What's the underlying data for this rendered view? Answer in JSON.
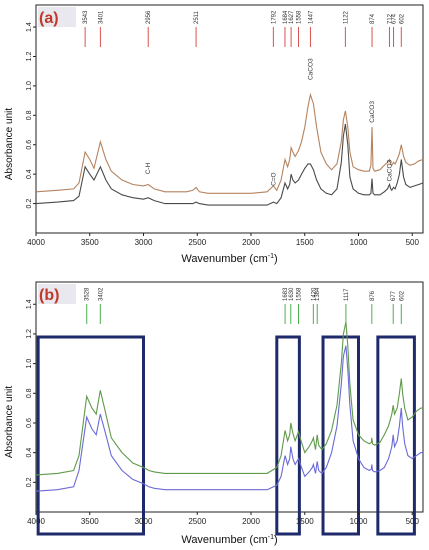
{
  "chart_data": [
    {
      "type": "line",
      "panel_label": "(a)",
      "xlabel": "Wavenumber (cm",
      "xlabel_sup": "-1",
      "xlabel_close": ")",
      "ylabel": "Absorbance unit",
      "xlim": [
        4000,
        400
      ],
      "ylim": [
        0.0,
        1.55
      ],
      "x_ticks": [
        4000,
        3500,
        3000,
        2500,
        2000,
        1500,
        1000,
        500
      ],
      "y_ticks": [
        0.2,
        0.4,
        0.6,
        0.8,
        1.0,
        1.2,
        1.4
      ],
      "peak_markers": [
        "3543",
        "3401",
        "2956",
        "2511",
        "1792",
        "1684",
        "1627",
        "1558",
        "1447",
        "1122",
        "874",
        "712",
        "674",
        "602"
      ],
      "annotations": [
        {
          "text": "C-H",
          "x": 2956,
          "y": 0.4
        },
        {
          "text": "C=O",
          "x": 1792,
          "y": 0.32
        },
        {
          "text": "CaCO3",
          "x": 1447,
          "y": 1.04
        },
        {
          "text": "CaCO3",
          "x": 874,
          "y": 0.75
        },
        {
          "text": "CaCO3",
          "x": 712,
          "y": 0.35
        }
      ],
      "series": [
        {
          "color": "#b5835f",
          "x": [
            4000,
            3800,
            3650,
            3600,
            3543,
            3500,
            3460,
            3401,
            3350,
            3300,
            3200,
            3100,
            3000,
            2956,
            2900,
            2800,
            2600,
            2540,
            2511,
            2480,
            2400,
            2200,
            2000,
            1850,
            1792,
            1760,
            1720,
            1684,
            1660,
            1640,
            1627,
            1610,
            1590,
            1558,
            1530,
            1500,
            1470,
            1447,
            1420,
            1390,
            1350,
            1300,
            1250,
            1200,
            1160,
            1140,
            1122,
            1100,
            1080,
            1050,
            1000,
            950,
            900,
            885,
            874,
            865,
            850,
            800,
            760,
            730,
            712,
            700,
            690,
            674,
            660,
            640,
            620,
            602,
            580,
            560,
            520,
            480,
            440,
            400
          ],
          "y": [
            0.28,
            0.29,
            0.3,
            0.34,
            0.55,
            0.5,
            0.44,
            0.62,
            0.5,
            0.42,
            0.36,
            0.33,
            0.32,
            0.33,
            0.3,
            0.28,
            0.28,
            0.29,
            0.31,
            0.28,
            0.27,
            0.27,
            0.27,
            0.28,
            0.32,
            0.29,
            0.36,
            0.5,
            0.45,
            0.5,
            0.58,
            0.55,
            0.52,
            0.56,
            0.62,
            0.72,
            0.86,
            0.94,
            0.88,
            0.72,
            0.55,
            0.47,
            0.43,
            0.47,
            0.62,
            0.77,
            0.83,
            0.72,
            0.55,
            0.45,
            0.43,
            0.42,
            0.42,
            0.46,
            0.72,
            0.44,
            0.42,
            0.43,
            0.46,
            0.48,
            0.5,
            0.47,
            0.46,
            0.48,
            0.47,
            0.5,
            0.54,
            0.6,
            0.52,
            0.48,
            0.46,
            0.47,
            0.49,
            0.5
          ]
        },
        {
          "color": "#4a4a4a",
          "x": [
            4000,
            3800,
            3650,
            3600,
            3543,
            3500,
            3460,
            3401,
            3350,
            3300,
            3200,
            3100,
            3000,
            2956,
            2900,
            2800,
            2600,
            2540,
            2511,
            2480,
            2400,
            2200,
            2000,
            1850,
            1792,
            1760,
            1720,
            1684,
            1660,
            1640,
            1627,
            1610,
            1590,
            1558,
            1530,
            1500,
            1470,
            1447,
            1420,
            1390,
            1350,
            1300,
            1250,
            1200,
            1160,
            1140,
            1122,
            1100,
            1080,
            1050,
            1000,
            950,
            900,
            885,
            874,
            865,
            850,
            800,
            760,
            730,
            712,
            700,
            690,
            674,
            660,
            640,
            620,
            602,
            580,
            560,
            520,
            480,
            440,
            400
          ],
          "y": [
            0.2,
            0.21,
            0.22,
            0.25,
            0.45,
            0.4,
            0.36,
            0.45,
            0.36,
            0.3,
            0.26,
            0.24,
            0.23,
            0.24,
            0.22,
            0.2,
            0.2,
            0.2,
            0.21,
            0.2,
            0.19,
            0.19,
            0.19,
            0.19,
            0.21,
            0.2,
            0.24,
            0.34,
            0.3,
            0.33,
            0.4,
            0.36,
            0.34,
            0.36,
            0.4,
            0.44,
            0.47,
            0.47,
            0.43,
            0.36,
            0.3,
            0.27,
            0.26,
            0.3,
            0.48,
            0.66,
            0.74,
            0.6,
            0.38,
            0.3,
            0.27,
            0.26,
            0.26,
            0.27,
            0.37,
            0.27,
            0.26,
            0.26,
            0.28,
            0.3,
            0.33,
            0.3,
            0.29,
            0.31,
            0.3,
            0.34,
            0.4,
            0.5,
            0.38,
            0.33,
            0.31,
            0.32,
            0.33,
            0.34
          ]
        }
      ]
    },
    {
      "type": "line",
      "panel_label": "(b)",
      "xlabel": "Wavenumber (cm",
      "xlabel_sup": "-1",
      "xlabel_close": ")",
      "ylabel": "Absorbance unit",
      "xlim": [
        4000,
        400
      ],
      "ylim": [
        0.0,
        1.55
      ],
      "x_ticks": [
        4000,
        3500,
        3000,
        2500,
        2000,
        1500,
        1000,
        500
      ],
      "y_ticks": [
        0.2,
        0.4,
        0.6,
        0.8,
        1.0,
        1.2,
        1.4
      ],
      "peak_markers": [
        "3528",
        "3402",
        "1683",
        "1630",
        "1558",
        "1420",
        "1384",
        "1117",
        "876",
        "677",
        "602"
      ],
      "highlight_regions": [
        [
          3980,
          3000
        ],
        [
          1760,
          1550
        ],
        [
          1330,
          1000
        ],
        [
          820,
          480
        ]
      ],
      "series": [
        {
          "color": "#5f9a4a",
          "x": [
            4000,
            3800,
            3650,
            3600,
            3528,
            3480,
            3440,
            3402,
            3350,
            3300,
            3200,
            3100,
            3000,
            2950,
            2900,
            2800,
            2600,
            2400,
            2200,
            2000,
            1850,
            1760,
            1720,
            1683,
            1660,
            1640,
            1630,
            1610,
            1590,
            1558,
            1530,
            1500,
            1460,
            1430,
            1420,
            1400,
            1384,
            1370,
            1340,
            1300,
            1250,
            1200,
            1160,
            1140,
            1117,
            1100,
            1080,
            1050,
            1000,
            950,
            900,
            880,
            876,
            870,
            850,
            800,
            760,
            720,
            690,
            677,
            665,
            640,
            620,
            602,
            590,
            570,
            540,
            500,
            460,
            420,
            400
          ],
          "y": [
            0.25,
            0.26,
            0.28,
            0.38,
            0.78,
            0.7,
            0.66,
            0.82,
            0.66,
            0.5,
            0.4,
            0.33,
            0.3,
            0.28,
            0.27,
            0.26,
            0.26,
            0.26,
            0.26,
            0.26,
            0.26,
            0.3,
            0.38,
            0.55,
            0.48,
            0.52,
            0.6,
            0.53,
            0.48,
            0.54,
            0.47,
            0.4,
            0.44,
            0.48,
            0.5,
            0.42,
            0.52,
            0.45,
            0.42,
            0.46,
            0.55,
            0.72,
            1.0,
            1.2,
            1.28,
            1.12,
            0.86,
            0.62,
            0.52,
            0.48,
            0.46,
            0.47,
            0.5,
            0.46,
            0.45,
            0.47,
            0.52,
            0.58,
            0.66,
            0.72,
            0.66,
            0.7,
            0.8,
            0.9,
            0.8,
            0.7,
            0.62,
            0.64,
            0.68,
            0.7,
            0.7
          ]
        },
        {
          "color": "#6a6ad8",
          "x": [
            4000,
            3800,
            3650,
            3600,
            3528,
            3480,
            3440,
            3402,
            3350,
            3300,
            3200,
            3100,
            3000,
            2950,
            2900,
            2800,
            2600,
            2400,
            2200,
            2000,
            1850,
            1760,
            1720,
            1683,
            1660,
            1640,
            1630,
            1610,
            1590,
            1558,
            1530,
            1500,
            1460,
            1430,
            1420,
            1400,
            1384,
            1370,
            1340,
            1300,
            1250,
            1200,
            1160,
            1140,
            1117,
            1100,
            1080,
            1050,
            1000,
            950,
            900,
            880,
            876,
            870,
            850,
            800,
            760,
            720,
            690,
            677,
            665,
            640,
            620,
            602,
            590,
            570,
            540,
            500,
            460,
            420,
            400
          ],
          "y": [
            0.14,
            0.15,
            0.17,
            0.28,
            0.64,
            0.56,
            0.52,
            0.66,
            0.52,
            0.38,
            0.28,
            0.22,
            0.19,
            0.17,
            0.16,
            0.15,
            0.15,
            0.15,
            0.15,
            0.15,
            0.15,
            0.18,
            0.24,
            0.38,
            0.32,
            0.36,
            0.44,
            0.36,
            0.32,
            0.36,
            0.3,
            0.24,
            0.27,
            0.3,
            0.32,
            0.26,
            0.34,
            0.28,
            0.26,
            0.3,
            0.4,
            0.58,
            0.86,
            1.05,
            1.12,
            0.96,
            0.72,
            0.48,
            0.36,
            0.3,
            0.28,
            0.29,
            0.32,
            0.28,
            0.27,
            0.28,
            0.3,
            0.36,
            0.44,
            0.52,
            0.44,
            0.48,
            0.58,
            0.7,
            0.58,
            0.46,
            0.38,
            0.36,
            0.38,
            0.4,
            0.4
          ]
        }
      ]
    }
  ]
}
